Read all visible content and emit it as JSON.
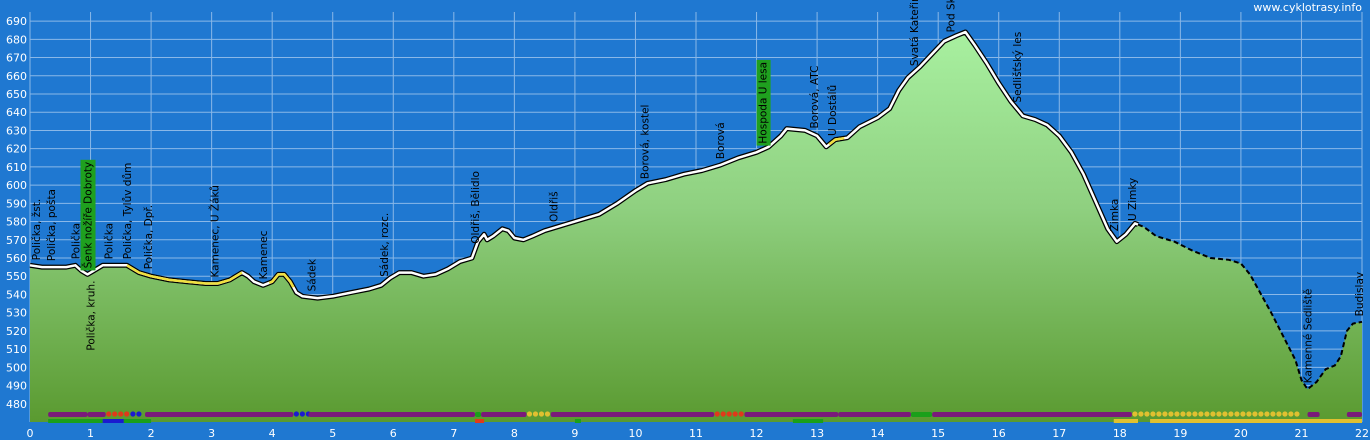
{
  "site": "www.cyklotrasy.info",
  "chart_data": {
    "type": "area",
    "title": "",
    "xlabel": "",
    "ylabel": "",
    "xlim": [
      0,
      22
    ],
    "ylim": [
      470,
      695
    ],
    "x_ticks": [
      "0",
      "1",
      "2",
      "3",
      "4",
      "5",
      "6",
      "7",
      "8",
      "9",
      "10",
      "11",
      "12",
      "13",
      "14",
      "15",
      "16",
      "17",
      "18",
      "19",
      "20",
      "21",
      "22"
    ],
    "y_ticks": [
      "480",
      "490",
      "500",
      "510",
      "520",
      "530",
      "540",
      "550",
      "560",
      "570",
      "580",
      "590",
      "600",
      "610",
      "620",
      "630",
      "640",
      "650",
      "660",
      "670",
      "680",
      "690"
    ],
    "grid": true,
    "profile": [
      [
        0,
        556
      ],
      [
        0.2,
        555
      ],
      [
        0.4,
        555
      ],
      [
        0.6,
        555
      ],
      [
        0.75,
        556
      ],
      [
        0.85,
        553
      ],
      [
        0.95,
        551
      ],
      [
        1.05,
        553
      ],
      [
        1.2,
        556
      ],
      [
        1.4,
        556
      ],
      [
        1.6,
        556
      ],
      [
        1.8,
        552
      ],
      [
        2,
        550
      ],
      [
        2.3,
        548
      ],
      [
        2.6,
        547
      ],
      [
        2.9,
        546
      ],
      [
        3.1,
        546
      ],
      [
        3.3,
        548
      ],
      [
        3.5,
        552
      ],
      [
        3.6,
        550
      ],
      [
        3.7,
        547
      ],
      [
        3.85,
        545
      ],
      [
        4.0,
        547
      ],
      [
        4.1,
        551
      ],
      [
        4.2,
        551
      ],
      [
        4.3,
        547
      ],
      [
        4.4,
        541
      ],
      [
        4.5,
        539
      ],
      [
        4.75,
        538
      ],
      [
        5.0,
        539
      ],
      [
        5.3,
        541
      ],
      [
        5.6,
        543
      ],
      [
        5.8,
        545
      ],
      [
        5.95,
        549
      ],
      [
        6.1,
        552
      ],
      [
        6.3,
        552
      ],
      [
        6.5,
        550
      ],
      [
        6.7,
        551
      ],
      [
        6.9,
        554
      ],
      [
        7.1,
        558
      ],
      [
        7.3,
        560
      ],
      [
        7.4,
        569
      ],
      [
        7.5,
        573
      ],
      [
        7.55,
        570
      ],
      [
        7.65,
        572
      ],
      [
        7.8,
        576
      ],
      [
        7.9,
        575
      ],
      [
        8.0,
        571
      ],
      [
        8.15,
        570
      ],
      [
        8.3,
        572
      ],
      [
        8.5,
        575
      ],
      [
        8.8,
        578
      ],
      [
        9.1,
        581
      ],
      [
        9.4,
        584
      ],
      [
        9.7,
        590
      ],
      [
        10.0,
        597
      ],
      [
        10.2,
        601
      ],
      [
        10.5,
        603
      ],
      [
        10.8,
        606
      ],
      [
        11.1,
        608
      ],
      [
        11.4,
        611
      ],
      [
        11.7,
        615
      ],
      [
        12.0,
        618
      ],
      [
        12.2,
        621
      ],
      [
        12.4,
        627
      ],
      [
        12.5,
        631
      ],
      [
        12.8,
        630
      ],
      [
        13.0,
        627
      ],
      [
        13.15,
        621
      ],
      [
        13.3,
        625
      ],
      [
        13.5,
        626
      ],
      [
        13.7,
        632
      ],
      [
        14.0,
        637
      ],
      [
        14.2,
        642
      ],
      [
        14.35,
        652
      ],
      [
        14.5,
        659
      ],
      [
        14.7,
        665
      ],
      [
        14.9,
        672
      ],
      [
        15.1,
        679
      ],
      [
        15.3,
        682
      ],
      [
        15.45,
        684
      ],
      [
        15.6,
        677
      ],
      [
        15.8,
        667
      ],
      [
        16.0,
        656
      ],
      [
        16.2,
        646
      ],
      [
        16.4,
        638
      ],
      [
        16.6,
        636
      ],
      [
        16.8,
        633
      ],
      [
        17.0,
        627
      ],
      [
        17.2,
        618
      ],
      [
        17.4,
        606
      ],
      [
        17.6,
        591
      ],
      [
        17.8,
        576
      ],
      [
        17.95,
        569
      ],
      [
        18.1,
        573
      ],
      [
        18.25,
        579
      ],
      [
        18.4,
        577
      ],
      [
        18.6,
        572
      ],
      [
        18.9,
        569
      ],
      [
        19.2,
        564
      ],
      [
        19.5,
        560
      ],
      [
        19.8,
        559
      ],
      [
        20.0,
        557
      ],
      [
        20.15,
        551
      ],
      [
        20.3,
        542
      ],
      [
        20.5,
        530
      ],
      [
        20.7,
        517
      ],
      [
        20.9,
        504
      ],
      [
        21.0,
        493
      ],
      [
        21.1,
        488
      ],
      [
        21.25,
        492
      ],
      [
        21.4,
        499
      ],
      [
        21.55,
        501
      ],
      [
        21.65,
        506
      ],
      [
        21.75,
        520
      ],
      [
        21.85,
        524
      ],
      [
        22.0,
        525
      ]
    ],
    "yellow_segments": [
      [
        1.6,
        3.5
      ],
      [
        3.95,
        4.35
      ],
      [
        13.2,
        13.45
      ]
    ],
    "dashed_from": 18.3,
    "point_labels": [
      {
        "x": 0.1,
        "text": "Polička, žst.",
        "pos": "above"
      },
      {
        "x": 0.35,
        "text": "Polička, pošta",
        "pos": "above"
      },
      {
        "x": 0.75,
        "text": "Polička",
        "pos": "above"
      },
      {
        "x": 0.95,
        "text": "Šenk nožíře Dobroty",
        "pos": "above",
        "highlight": true
      },
      {
        "x": 1.0,
        "text": "Polička, kruh.",
        "pos": "below"
      },
      {
        "x": 1.3,
        "text": "Polička",
        "pos": "above"
      },
      {
        "x": 1.6,
        "text": "Polička, Tylův dům",
        "pos": "above"
      },
      {
        "x": 1.95,
        "text": "Polička, Dpř.",
        "pos": "above"
      },
      {
        "x": 3.05,
        "text": "Kamenec, U Žáků",
        "pos": "above"
      },
      {
        "x": 3.85,
        "text": "Kamenec",
        "pos": "above"
      },
      {
        "x": 4.65,
        "text": "Sádek",
        "pos": "above"
      },
      {
        "x": 5.85,
        "text": "Sádek, rozc.",
        "pos": "above"
      },
      {
        "x": 7.35,
        "text": "Oldřiš, Bělidlo",
        "pos": "above"
      },
      {
        "x": 8.65,
        "text": "Oldřiš",
        "pos": "above"
      },
      {
        "x": 10.15,
        "text": "Borová, kostel",
        "pos": "above"
      },
      {
        "x": 11.4,
        "text": "Borová",
        "pos": "above"
      },
      {
        "x": 12.1,
        "text": "Hospoda U lesa",
        "pos": "above",
        "highlight": true
      },
      {
        "x": 12.95,
        "text": "Borová, ATC",
        "pos": "above"
      },
      {
        "x": 13.25,
        "text": "U Dostálů",
        "pos": "above"
      },
      {
        "x": 14.6,
        "text": "Svatá Kateřina",
        "pos": "above"
      },
      {
        "x": 15.2,
        "text": "Pod Skalkou",
        "pos": "above"
      },
      {
        "x": 16.3,
        "text": "Sedlišťský les",
        "pos": "above"
      },
      {
        "x": 17.9,
        "text": "Zimka",
        "pos": "above"
      },
      {
        "x": 18.2,
        "text": "U Zimky",
        "pos": "above"
      },
      {
        "x": 21.1,
        "text": "Kamenné Sedliště",
        "pos": "above"
      },
      {
        "x": 21.95,
        "text": "Budislav",
        "pos": "above"
      }
    ],
    "surface_bar": [
      {
        "from": 0.3,
        "to": 0.95,
        "color": "#7a1a7a"
      },
      {
        "from": 0.95,
        "to": 1.25,
        "color": "#7a1a7a"
      },
      {
        "from": 1.25,
        "to": 1.6,
        "color": "#e03a1a",
        "dots": true
      },
      {
        "from": 1.65,
        "to": 1.85,
        "color": "#1a1ad0",
        "dots": true
      },
      {
        "from": 1.9,
        "to": 4.35,
        "color": "#7a1a7a"
      },
      {
        "from": 4.35,
        "to": 4.6,
        "color": "#1a1ad0",
        "dots": true
      },
      {
        "from": 4.6,
        "to": 7.35,
        "color": "#7a1a7a"
      },
      {
        "from": 7.35,
        "to": 7.45,
        "color": "#1aa01a"
      },
      {
        "from": 7.45,
        "to": 8.2,
        "color": "#7a1a7a"
      },
      {
        "from": 8.2,
        "to": 8.6,
        "color": "#e0c030",
        "dots": true
      },
      {
        "from": 8.6,
        "to": 11.3,
        "color": "#7a1a7a"
      },
      {
        "from": 11.3,
        "to": 11.8,
        "color": "#e03a1a",
        "dots": true
      },
      {
        "from": 11.8,
        "to": 13.35,
        "color": "#7a1a7a"
      },
      {
        "from": 13.35,
        "to": 14.55,
        "color": "#7a1a7a"
      },
      {
        "from": 14.55,
        "to": 14.9,
        "color": "#1aa01a"
      },
      {
        "from": 14.9,
        "to": 18.2,
        "color": "#7a1a7a"
      },
      {
        "from": 18.2,
        "to": 20.95,
        "color": "#e0c030",
        "dots": true
      },
      {
        "from": 21.1,
        "to": 21.3,
        "color": "#7a1a7a"
      },
      {
        "from": 21.75,
        "to": 22.0,
        "color": "#7a1a7a"
      }
    ],
    "base_bar": [
      {
        "from": 0.3,
        "to": 1.2,
        "color": "#1aa01a"
      },
      {
        "from": 1.2,
        "to": 1.55,
        "color": "#1a1ad0"
      },
      {
        "from": 1.55,
        "to": 2.0,
        "color": "#1aa01a"
      },
      {
        "from": 7.35,
        "to": 7.5,
        "color": "#e03a1a"
      },
      {
        "from": 9.0,
        "to": 9.1,
        "color": "#1aa01a"
      },
      {
        "from": 12.6,
        "to": 13.1,
        "color": "#1aa01a"
      },
      {
        "from": 17.9,
        "to": 18.3,
        "color": "#e0c030"
      },
      {
        "from": 18.5,
        "to": 22.0,
        "color": "#e0c030"
      }
    ]
  }
}
